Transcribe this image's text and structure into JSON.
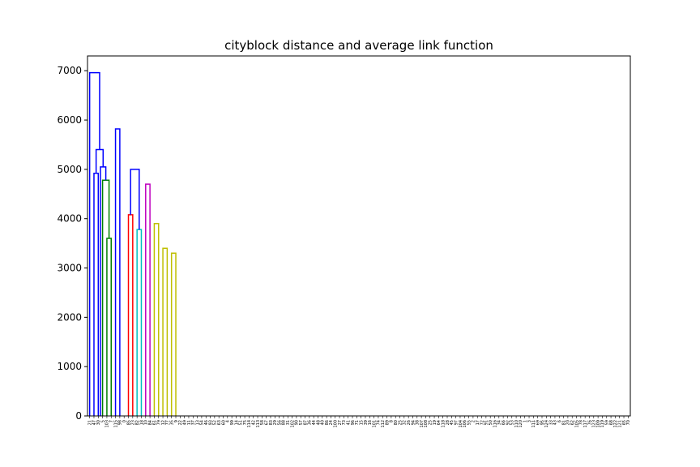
{
  "chart_data": {
    "type": "dendrogram",
    "title": "cityblock distance and average link function",
    "xlabel": "",
    "ylabel": "",
    "ylim": [
      0,
      7300
    ],
    "yticks": [
      0,
      1000,
      2000,
      3000,
      4000,
      5000,
      6000,
      7000
    ],
    "grid": false,
    "colors": {
      "b": "#0000ff",
      "g": "#008000",
      "r": "#ff0000",
      "c": "#00bfbf",
      "m": "#bf00bf",
      "y": "#bfbf00",
      "k": "#000000"
    },
    "leaves": [
      "21",
      "47",
      "30",
      "5",
      "103",
      "7",
      "115",
      "98",
      "0",
      "85",
      "23",
      "82",
      "18",
      "10",
      "84",
      "61",
      "79",
      "12",
      "77",
      "35",
      "9",
      "22",
      "49",
      "11",
      "37",
      "13",
      "54",
      "46",
      "93",
      "52",
      "63",
      "60",
      "4",
      "99",
      "14",
      "51",
      "75",
      "114",
      "42",
      "113",
      "58",
      "67",
      "83",
      "29",
      "56",
      "88",
      "31",
      "102",
      "90",
      "57",
      "87",
      "36",
      "44",
      "48",
      "40",
      "86",
      "24",
      "100",
      "27",
      "73",
      "41",
      "96",
      "71",
      "15",
      "39",
      "16",
      "101",
      "74",
      "112",
      "89",
      "8",
      "80",
      "25",
      "32",
      "26",
      "94",
      "38",
      "107",
      "108",
      "25",
      "19",
      "64",
      "118",
      "28",
      "45",
      "97",
      "104",
      "106",
      "55",
      "2",
      "17",
      "72",
      "91",
      "50",
      "116",
      "34",
      "66",
      "92",
      "53",
      "110",
      "120",
      "1",
      "3",
      "111",
      "69",
      "95",
      "124",
      "33",
      "43",
      "6",
      "81",
      "20",
      "62",
      "105",
      "78",
      "117",
      "76",
      "123",
      "109",
      "119",
      "59",
      "68",
      "122",
      "121",
      "65",
      "70"
    ],
    "links": [
      {
        "leaves": [
          1,
          2
        ],
        "height": 4920,
        "color": "b"
      },
      {
        "leaves": [
          4,
          5
        ],
        "height": 3600,
        "color": "g"
      },
      {
        "leaves": [
          3,
          4.5
        ],
        "height": 4780,
        "color": "g"
      },
      {
        "leaves": [
          2.5,
          3.75
        ],
        "height": 5050,
        "color": "b"
      },
      {
        "leaves": [
          1.5,
          3.125
        ],
        "height": 5400,
        "color": "b"
      },
      {
        "leaves": [
          0,
          2.3125
        ],
        "height": 6960,
        "color": "b"
      },
      {
        "leaves": [
          6,
          7
        ],
        "height": 5820,
        "color": "b"
      },
      {
        "leaves": [
          9,
          10
        ],
        "height": 4080,
        "color": "r"
      },
      {
        "leaves": [
          11,
          12
        ],
        "height": 3780,
        "color": "c"
      },
      {
        "leaves": [
          13,
          14
        ],
        "height": 4700,
        "color": "m"
      },
      {
        "leaves": [
          9.5,
          11.5
        ],
        "height": 5000,
        "color": "b"
      },
      {
        "leaves": [
          15,
          16
        ],
        "height": 3900,
        "color": "y"
      },
      {
        "leaves": [
          17,
          18
        ],
        "height": 3400,
        "color": "y"
      },
      {
        "leaves": [
          19,
          20
        ],
        "height": 3300,
        "color": "y"
      }
    ]
  }
}
